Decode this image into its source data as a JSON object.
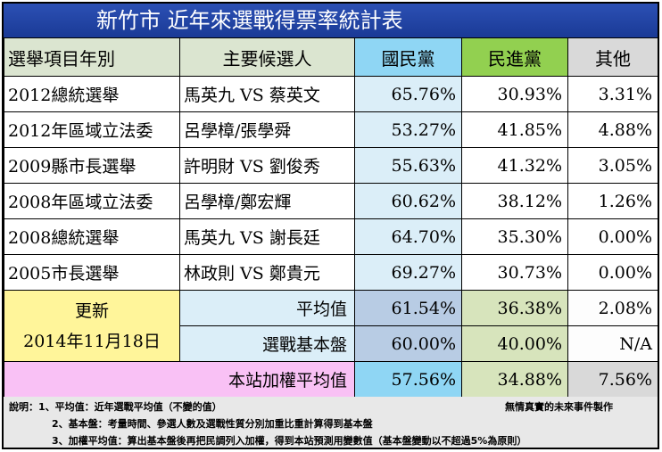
{
  "title": "新竹市  近年來選戰得票率統計表",
  "header": {
    "col_election": "選舉項目年別",
    "col_candidates": "主要候選人",
    "col_kmt": "國民黨",
    "col_dpp": "民進黨",
    "col_other": "其他"
  },
  "rows": [
    {
      "election": "2012總統選舉",
      "candidates": "馬英九 VS 蔡英文",
      "kmt": "65.76%",
      "dpp": "30.93%",
      "other": "3.31%"
    },
    {
      "election": "2012年區域立法委",
      "candidates": "呂學樟/張學舜",
      "kmt": "53.27%",
      "dpp": "41.85%",
      "other": "4.88%"
    },
    {
      "election": "2009縣市長選舉",
      "candidates": "許明財 VS 劉俊秀",
      "kmt": "55.63%",
      "dpp": "41.32%",
      "other": "3.05%"
    },
    {
      "election": "2008年區域立法委",
      "candidates": "呂學樟/鄭宏輝",
      "kmt": "60.62%",
      "dpp": "38.12%",
      "other": "1.26%"
    },
    {
      "election": "2008總統選舉",
      "candidates": "馬英九 VS 謝長廷",
      "kmt": "64.70%",
      "dpp": "35.30%",
      "other": "0.00%"
    },
    {
      "election": "2005市長選舉",
      "candidates": "林政則 VS 鄭貴元",
      "kmt": "69.27%",
      "dpp": "30.73%",
      "other": "0.00%"
    }
  ],
  "update": {
    "label": "更新",
    "date": "2014年11月18日"
  },
  "average": {
    "label": "平均值",
    "kmt": "61.54%",
    "dpp": "36.38%",
    "other": "2.08%"
  },
  "base": {
    "label": "選戰基本盤",
    "kmt": "60.00%",
    "dpp": "40.00%",
    "other": "N/A"
  },
  "weighted": {
    "label": "本站加權平均值",
    "kmt": "57.56%",
    "dpp": "34.88%",
    "other": "7.56%"
  },
  "notes": {
    "note1": "說明：1、平均值：近年選戰平均值（不變的值）",
    "note2": "2、基本盤：考量時間、參選人數及選戰性質分別加重比重計算得到基本盤",
    "note3": "3、加權平均值：算出基本盤後再把民調列入加權，得到本站預測用變數值（基本盤變動以不超過5%為原則）",
    "credit": "無情真實的未來事件製作"
  },
  "colors": {
    "title_bg": "#1f42a3",
    "kmt_header": "#8fd6f4",
    "dpp_header": "#92d050",
    "other_header": "#d9d9d9",
    "update_bg": "#fff59a",
    "weighted_bg": "#f9c1f5"
  }
}
